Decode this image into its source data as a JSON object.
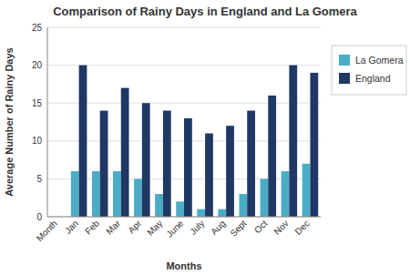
{
  "chart_data": {
    "type": "bar",
    "title": "Comparison of Rainy Days in England and La Gomera",
    "xlabel": "Months",
    "ylabel": "Average Number of Rainy Days",
    "categories": [
      "Month",
      "Jan",
      "Feb",
      "Mar",
      "Apr",
      "May",
      "June",
      "July",
      "Aug",
      "Sept",
      "Oct",
      "Nov",
      "Dec"
    ],
    "series": [
      {
        "name": "La Gomera",
        "color": "#4BACC6",
        "values": [
          0,
          6,
          6,
          6,
          5,
          3,
          2,
          1,
          1,
          3,
          5,
          6,
          7
        ]
      },
      {
        "name": "England",
        "color": "#1F3864",
        "values": [
          0,
          20,
          14,
          17,
          15,
          14,
          13,
          11,
          12,
          14,
          16,
          20,
          19
        ]
      }
    ],
    "ylim": [
      0,
      25
    ],
    "yticks": [
      0,
      5,
      10,
      15,
      20,
      25
    ],
    "grid": true,
    "legend": "right"
  }
}
